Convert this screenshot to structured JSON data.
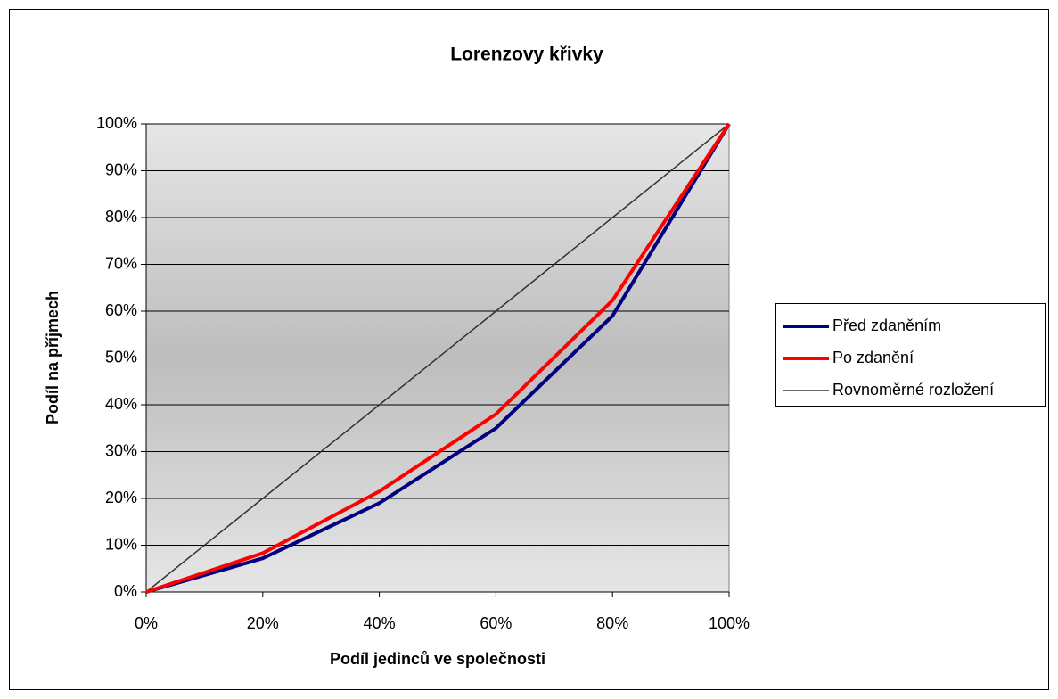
{
  "chart_data": {
    "type": "line",
    "title": "Lorenzovy křivky",
    "x_label": "Podíl jedinců ve společnosti",
    "y_label": "Podíl na příjmech",
    "x": [
      0,
      20,
      40,
      60,
      80,
      100
    ],
    "series": [
      {
        "name": "Před zdaněním",
        "color": "#000080",
        "values": [
          0,
          7.2,
          19,
          35,
          59,
          100
        ]
      },
      {
        "name": "Po zdanění",
        "color": "#ff0000",
        "values": [
          0,
          8.3,
          21.5,
          38,
          62.3,
          100
        ]
      },
      {
        "name": "Rovnoměrné rozložení",
        "color": "#333333",
        "values": [
          0,
          20,
          40,
          60,
          80,
          100
        ]
      }
    ],
    "xlim": [
      0,
      100
    ],
    "xticks": [
      {
        "value": 0,
        "label": "0%"
      },
      {
        "value": 20,
        "label": "20%"
      },
      {
        "value": 40,
        "label": "40%"
      },
      {
        "value": 60,
        "label": "60%"
      },
      {
        "value": 80,
        "label": "80%"
      },
      {
        "value": 100,
        "label": "100%"
      }
    ],
    "ylim": [
      0,
      100
    ],
    "yticks": [
      {
        "value": 0,
        "label": "0%"
      },
      {
        "value": 10,
        "label": "10%"
      },
      {
        "value": 20,
        "label": "20%"
      },
      {
        "value": 30,
        "label": "30%"
      },
      {
        "value": 40,
        "label": "40%"
      },
      {
        "value": 50,
        "label": "50%"
      },
      {
        "value": 60,
        "label": "60%"
      },
      {
        "value": 70,
        "label": "70%"
      },
      {
        "value": 80,
        "label": "80%"
      },
      {
        "value": 90,
        "label": "90%"
      },
      {
        "value": 100,
        "label": "100%"
      }
    ],
    "grid": true,
    "legend": "right"
  }
}
